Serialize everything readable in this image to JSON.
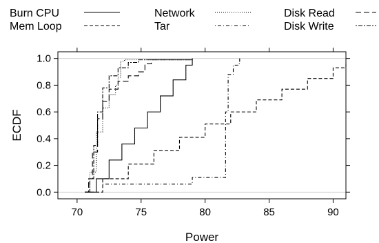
{
  "chart_data": {
    "type": "line",
    "title": "",
    "xlabel": "Power",
    "ylabel": "ECDF",
    "xlim": [
      68.5,
      91.0
    ],
    "ylim": [
      -0.05,
      1.05
    ],
    "x_ticks": [
      70,
      75,
      80,
      85,
      90
    ],
    "x_tick_labels": [
      "70",
      "75",
      "80",
      "85",
      "90"
    ],
    "y_ticks": [
      0.0,
      0.2,
      0.4,
      0.6,
      0.8,
      1.0
    ],
    "y_tick_labels": [
      "0.0",
      "0.2",
      "0.4",
      "0.6",
      "0.8",
      "1.0"
    ],
    "reference_lines": [
      0,
      1
    ],
    "legend_position": "top",
    "series": [
      {
        "name": "Burn CPU",
        "style": "solid",
        "x": [
          70.6,
          71.5,
          72.5,
          73.5,
          74.5,
          75.5,
          76.5,
          77.5,
          78.5,
          79.0
        ],
        "y": [
          0.0,
          0.1,
          0.24,
          0.36,
          0.48,
          0.6,
          0.72,
          0.84,
          0.95,
          1.0
        ]
      },
      {
        "name": "Mem Loop",
        "style": "dashed",
        "x": [
          70.6,
          72,
          74,
          76,
          78,
          80,
          82,
          84,
          86,
          88,
          90,
          91
        ],
        "y": [
          0.0,
          0.1,
          0.21,
          0.31,
          0.41,
          0.51,
          0.6,
          0.69,
          0.77,
          0.85,
          0.93,
          0.97
        ]
      },
      {
        "name": "Network",
        "style": "dotted",
        "x": [
          70.7,
          71.0,
          71.5,
          72.0,
          72.5,
          73.0,
          73.2,
          73.4,
          73.7,
          74.5,
          76.0,
          77.5,
          79.0
        ],
        "y": [
          0.0,
          0.15,
          0.45,
          0.63,
          0.73,
          0.8,
          0.86,
          0.98,
          0.99,
          0.99,
          0.99,
          0.99,
          1.0
        ]
      },
      {
        "name": "Tar",
        "style": "dotdash",
        "x": [
          72.0,
          74.0,
          76.0,
          78.9,
          79.0,
          80.5,
          81.3,
          81.6,
          81.8,
          82.2,
          82.6,
          82.7
        ],
        "y": [
          0.06,
          0.06,
          0.06,
          0.06,
          0.11,
          0.11,
          0.11,
          0.6,
          0.88,
          0.95,
          0.96,
          1.0
        ]
      },
      {
        "name": "Disk Read",
        "style": "longdash",
        "x": [
          70.6,
          70.9,
          71.2,
          71.6,
          72.0,
          72.5,
          73.2,
          74.0,
          74.8,
          75.3,
          75.8,
          77.0,
          79.0
        ],
        "y": [
          0.0,
          0.1,
          0.3,
          0.55,
          0.68,
          0.77,
          0.83,
          0.87,
          0.9,
          0.96,
          0.99,
          0.99,
          1.0
        ]
      },
      {
        "name": "Disk Write",
        "style": "twodash",
        "x": [
          70.7,
          71.0,
          71.3,
          71.6,
          72.0,
          72.5,
          73.2,
          74.0,
          74.8,
          75.5,
          76.5,
          77.5,
          79.0
        ],
        "y": [
          0.0,
          0.1,
          0.35,
          0.6,
          0.78,
          0.87,
          0.93,
          0.97,
          0.99,
          0.99,
          0.99,
          0.99,
          1.0
        ]
      }
    ]
  }
}
